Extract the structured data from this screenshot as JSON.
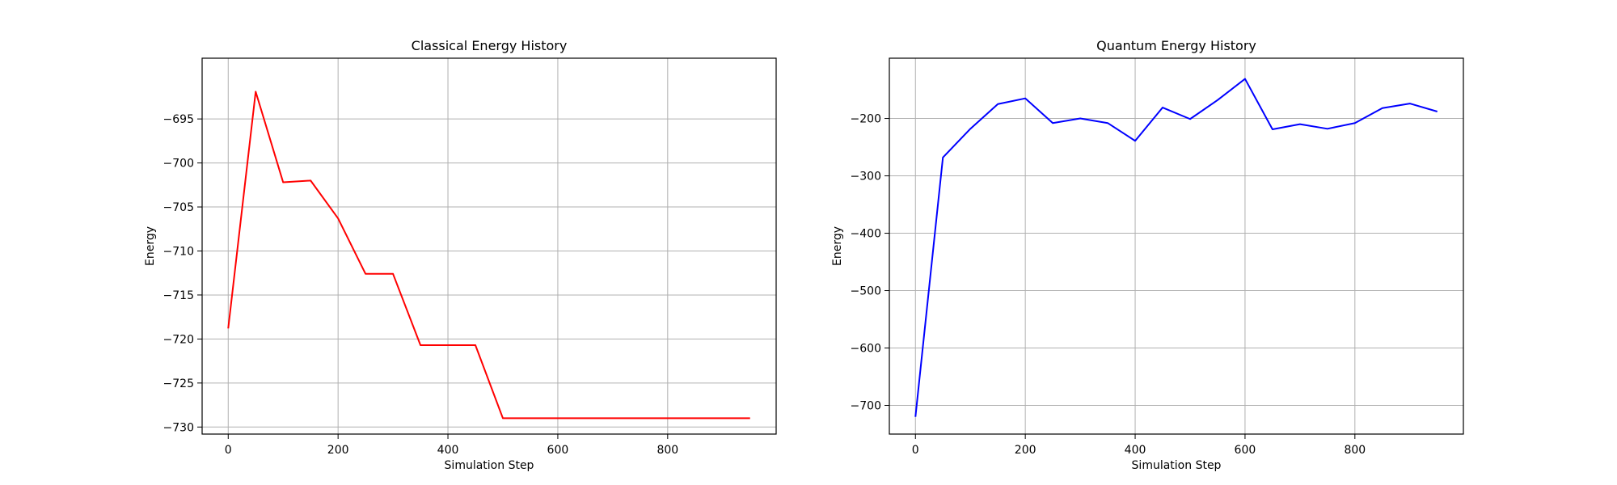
{
  "chart_data": [
    {
      "type": "line",
      "title": "Classical Energy History",
      "xlabel": "Simulation Step",
      "ylabel": "Energy",
      "xlim": [
        -47.5,
        997.5
      ],
      "ylim": [
        -730.8,
        -688.1
      ],
      "xticks": [
        0,
        200,
        400,
        600,
        800
      ],
      "yticks": [
        -695,
        -700,
        -705,
        -710,
        -715,
        -720,
        -725,
        -730
      ],
      "grid": true,
      "color": "#ff0000",
      "series": [
        {
          "x": [
            0,
            50,
            100,
            150,
            200,
            250,
            300,
            350,
            400,
            450,
            500,
            550,
            600,
            650,
            700,
            750,
            800,
            850,
            900,
            950
          ],
          "values": [
            -718.8,
            -691.9,
            -702.2,
            -702.0,
            -706.3,
            -712.6,
            -712.6,
            -720.7,
            -720.7,
            -720.7,
            -729.0,
            -729.0,
            -729.0,
            -729.0,
            -729.0,
            -729.0,
            -729.0,
            -729.0,
            -729.0,
            -729.0
          ]
        }
      ]
    },
    {
      "type": "line",
      "title": "Quantum Energy History",
      "xlabel": "Simulation Step",
      "ylabel": "Energy",
      "xlim": [
        -47.5,
        997.5
      ],
      "ylim": [
        -750,
        -95
      ],
      "xticks": [
        0,
        200,
        400,
        600,
        800
      ],
      "yticks": [
        -200,
        -300,
        -400,
        -500,
        -600,
        -700
      ],
      "grid": true,
      "color": "#0000ff",
      "series": [
        {
          "x": [
            0,
            50,
            100,
            150,
            200,
            250,
            300,
            350,
            400,
            450,
            500,
            550,
            600,
            650,
            700,
            750,
            800,
            850,
            900,
            950
          ],
          "values": [
            -720,
            -268,
            -218,
            -175,
            -165,
            -208,
            -200,
            -208,
            -239,
            -181,
            -201,
            -168,
            -131,
            -219,
            -210,
            -218,
            -208,
            -182,
            -174,
            -188
          ]
        }
      ]
    }
  ]
}
